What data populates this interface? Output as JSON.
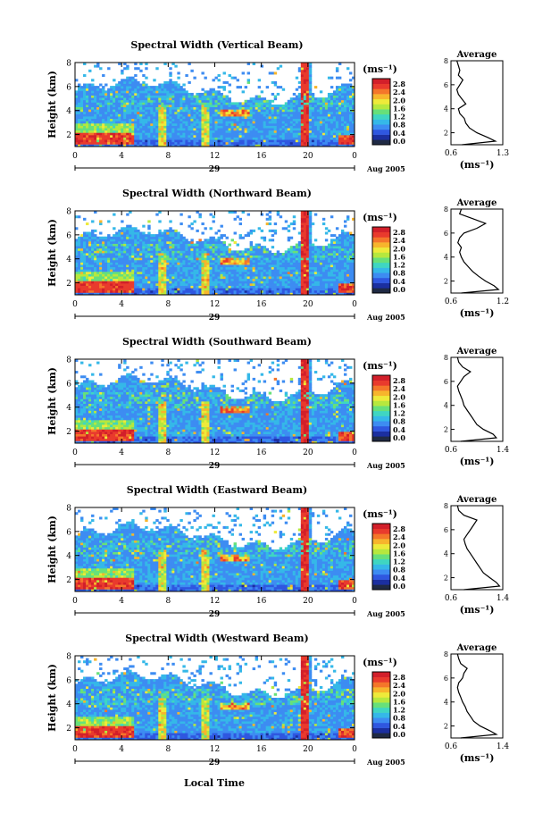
{
  "colorbar": {
    "unit": "(ms⁻¹)",
    "ticks": [
      "2.8",
      "2.4",
      "2.0",
      "1.6",
      "1.2",
      "0.8",
      "0.4",
      "0.0"
    ],
    "colors": [
      "#1f2a44",
      "#1b2fa0",
      "#2f57e0",
      "#3d8cf2",
      "#35b8e8",
      "#3fd6c2",
      "#67e07a",
      "#b6e83e",
      "#eeea3a",
      "#f7b52c",
      "#f4762a",
      "#e93a2d",
      "#d21f2a"
    ]
  },
  "xaxis": {
    "ticks": [
      "0",
      "4",
      "8",
      "12",
      "16",
      "20",
      "0"
    ],
    "day_label": "29",
    "date_label": "Aug 2005",
    "local_time_label": "Local Time"
  },
  "chart_data": [
    {
      "type": "heatmap",
      "title": "Spectral Width (Vertical Beam)",
      "ylabel": "Height (km)",
      "xlim": [
        0,
        24
      ],
      "ylim": [
        1,
        8
      ],
      "yticks": [
        "8",
        "6",
        "4",
        "2"
      ],
      "avg": {
        "title": "Average",
        "xlabel": "(ms⁻¹)",
        "xticks": [
          "0.6",
          "1.3"
        ],
        "xlim": [
          0.6,
          1.3
        ],
        "yticks": [
          "8",
          "6",
          "4",
          "2"
        ],
        "height": [
          1.0,
          1.3,
          1.6,
          2.0,
          2.4,
          2.8,
          3.2,
          3.6,
          4.0,
          4.4,
          4.8,
          5.2,
          5.6,
          6.0,
          6.4,
          6.8,
          7.2,
          7.6,
          8.0
        ],
        "value": [
          0.75,
          1.2,
          1.1,
          0.95,
          0.85,
          0.8,
          0.78,
          0.72,
          0.7,
          0.8,
          0.75,
          0.7,
          0.68,
          0.72,
          0.76,
          0.7,
          0.72,
          0.7,
          0.68
        ]
      }
    },
    {
      "type": "heatmap",
      "title": "Spectral Width (Northward Beam)",
      "ylabel": "Height (km)",
      "xlim": [
        0,
        24
      ],
      "ylim": [
        1,
        8
      ],
      "yticks": [
        "8",
        "6",
        "4",
        "2"
      ],
      "avg": {
        "title": "Average",
        "xlabel": "(ms⁻¹)",
        "xticks": [
          "0.6",
          "1.2"
        ],
        "xlim": [
          0.6,
          1.2
        ],
        "yticks": [
          "8",
          "6",
          "4",
          "2"
        ],
        "height": [
          1.0,
          1.3,
          1.6,
          2.0,
          2.4,
          2.8,
          3.2,
          3.6,
          4.0,
          4.4,
          4.8,
          5.2,
          5.6,
          6.0,
          6.4,
          6.8,
          7.2,
          7.6,
          8.0
        ],
        "value": [
          0.72,
          1.15,
          1.1,
          1.0,
          0.92,
          0.85,
          0.8,
          0.75,
          0.72,
          0.7,
          0.72,
          0.68,
          0.7,
          0.75,
          0.9,
          1.0,
          0.85,
          0.7,
          0.72
        ]
      }
    },
    {
      "type": "heatmap",
      "title": "Spectral Width (Southward Beam)",
      "ylabel": "Height (km)",
      "xlim": [
        0,
        24
      ],
      "ylim": [
        1,
        8
      ],
      "yticks": [
        "8",
        "6",
        "4",
        "2"
      ],
      "avg": {
        "title": "Average",
        "xlabel": "(ms⁻¹)",
        "xticks": [
          "0.6",
          "1.4"
        ],
        "xlim": [
          0.6,
          1.4
        ],
        "yticks": [
          "8",
          "6",
          "4",
          "2"
        ],
        "height": [
          1.0,
          1.3,
          1.6,
          2.0,
          2.4,
          2.8,
          3.2,
          3.6,
          4.0,
          4.4,
          4.8,
          5.2,
          5.6,
          6.0,
          6.4,
          6.8,
          7.2,
          7.6,
          8.0
        ],
        "value": [
          0.75,
          1.3,
          1.25,
          1.1,
          1.0,
          0.95,
          0.9,
          0.85,
          0.8,
          0.78,
          0.75,
          0.72,
          0.7,
          0.75,
          0.8,
          0.9,
          0.78,
          0.72,
          0.7
        ]
      }
    },
    {
      "type": "heatmap",
      "title": "Spectral Width (Eastward Beam)",
      "ylabel": "Height (km)",
      "xlim": [
        0,
        24
      ],
      "ylim": [
        1,
        8
      ],
      "yticks": [
        "8",
        "6",
        "4",
        "2"
      ],
      "avg": {
        "title": "Average",
        "xlabel": "(ms⁻¹)",
        "xticks": [
          "0.6",
          "1.4"
        ],
        "xlim": [
          0.6,
          1.4
        ],
        "yticks": [
          "8",
          "6",
          "4",
          "2"
        ],
        "height": [
          1.0,
          1.3,
          1.6,
          2.0,
          2.4,
          2.8,
          3.2,
          3.6,
          4.0,
          4.4,
          4.8,
          5.2,
          5.6,
          6.0,
          6.4,
          6.8,
          7.2,
          7.6,
          8.0
        ],
        "value": [
          0.8,
          1.35,
          1.3,
          1.2,
          1.1,
          1.05,
          1.0,
          0.95,
          0.9,
          0.85,
          0.82,
          0.8,
          0.85,
          0.9,
          0.95,
          1.0,
          0.8,
          0.72,
          0.7
        ]
      }
    },
    {
      "type": "heatmap",
      "title": "Spectral Width (Westward Beam)",
      "ylabel": "Height (km)",
      "xlim": [
        0,
        24
      ],
      "ylim": [
        1,
        8
      ],
      "yticks": [
        "8",
        "6",
        "4",
        "2"
      ],
      "avg": {
        "title": "Average",
        "xlabel": "(ms⁻¹)",
        "xticks": [
          "0.6",
          "1.4"
        ],
        "xlim": [
          0.6,
          1.4
        ],
        "yticks": [
          "8",
          "6",
          "4",
          "2"
        ],
        "height": [
          1.0,
          1.3,
          1.6,
          2.0,
          2.4,
          2.8,
          3.2,
          3.6,
          4.0,
          4.4,
          4.8,
          5.2,
          5.6,
          6.0,
          6.4,
          6.8,
          7.2,
          7.6,
          8.0
        ],
        "value": [
          0.75,
          1.3,
          1.2,
          1.05,
          0.95,
          0.9,
          0.85,
          0.82,
          0.78,
          0.75,
          0.72,
          0.7,
          0.72,
          0.78,
          0.8,
          0.85,
          0.75,
          0.72,
          0.7
        ]
      }
    }
  ]
}
